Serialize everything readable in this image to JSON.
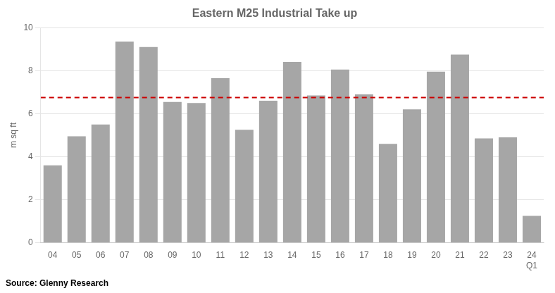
{
  "chart_data": {
    "type": "bar",
    "title": "Eastern M25 Industrial Take up",
    "ylabel": "m sq ft",
    "source": "Source: Glenny Research",
    "categories": [
      "04",
      "05",
      "06",
      "07",
      "08",
      "09",
      "10",
      "11",
      "12",
      "13",
      "14",
      "15",
      "16",
      "17",
      "18",
      "19",
      "20",
      "21",
      "22",
      "23",
      "24\nQ1"
    ],
    "values": [
      3.6,
      4.95,
      5.5,
      9.35,
      9.1,
      6.55,
      6.5,
      7.65,
      5.25,
      6.6,
      8.4,
      6.85,
      8.05,
      6.9,
      4.6,
      6.2,
      7.95,
      8.75,
      4.85,
      4.9,
      1.25
    ],
    "color": "#a6a6a6",
    "hline": {
      "value": 6.75,
      "color": "#cc0000",
      "line_style": "dashed"
    },
    "ylim": [
      0,
      10
    ],
    "yticks": [
      0,
      2,
      4,
      6,
      8,
      10
    ],
    "grid": true
  }
}
